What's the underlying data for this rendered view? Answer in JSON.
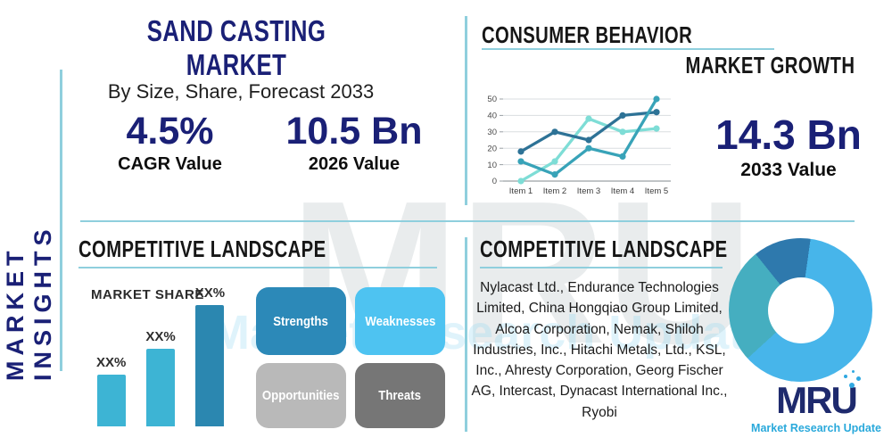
{
  "colors": {
    "navy": "#1a2076",
    "heading": "#161616",
    "teal_line": "#8fcfdd",
    "logo_navy": "#1e2a6d",
    "logo_blue": "#2aa9db"
  },
  "sidebar": {
    "label": "MARKET INSIGHTS"
  },
  "header": {
    "title": "SAND CASTING MARKET",
    "subtitle": "By Size, Share, Forecast 2033"
  },
  "stats": [
    {
      "value": "4.5%",
      "label": "CAGR Value"
    },
    {
      "value": "10.5 Bn",
      "label": "2026 Value"
    },
    {
      "value": "14.3 Bn",
      "label": "2033 Value"
    }
  ],
  "sections": {
    "consumer": {
      "title": "CONSUMER BEHAVIOR",
      "growth_title": "MARKET GROWTH"
    },
    "competitive_left": {
      "title": "COMPETITIVE LANDSCAPE",
      "market_share_label": "MARKET SHARE"
    },
    "competitive_right": {
      "title": "COMPETITIVE LANDSCAPE",
      "companies": "Nylacast Ltd., Endurance Technologies Limited, China Hongqiao Group Limited, Alcoa Corporation, Nemak, Shiloh Industries, Inc., Hitachi Metals, Ltd., KSL, Inc., Ahresty Corporation, Georg Fischer AG, Intercast, Dynacast International Inc., Ryobi"
    }
  },
  "swot": [
    {
      "label": "Strengths",
      "color": "#2c89b8"
    },
    {
      "label": "Weaknesses",
      "color": "#4ec3f1"
    },
    {
      "label": "Opportunities",
      "color": "#b9b9b9"
    },
    {
      "label": "Threats",
      "color": "#767676"
    }
  ],
  "chart_data": [
    {
      "type": "line",
      "title": "",
      "x": [
        "Item 1",
        "Item 2",
        "Item 3",
        "Item 4",
        "Item 5"
      ],
      "series": [
        {
          "name": "series-dark-blue",
          "color": "#2d7296",
          "values": [
            18,
            30,
            25,
            40,
            42
          ]
        },
        {
          "name": "series-teal",
          "color": "#38a3b8",
          "values": [
            12,
            4,
            20,
            15,
            50
          ]
        },
        {
          "name": "series-light-teal",
          "color": "#7eddd6",
          "values": [
            0,
            12,
            38,
            30,
            32
          ]
        }
      ],
      "ylim": [
        0,
        50
      ],
      "yticks": [
        0,
        10,
        20,
        30,
        40,
        50
      ],
      "grid": true,
      "legend": false
    },
    {
      "type": "bar",
      "title": "MARKET SHARE",
      "categories": [
        "",
        "",
        ""
      ],
      "values": [
        30,
        45,
        70
      ],
      "value_labels": [
        "XX%",
        "XX%",
        "XX%"
      ],
      "colors": [
        "#3db4d4",
        "#3db4d4",
        "#2b87b0"
      ],
      "ylim": [
        0,
        100
      ]
    },
    {
      "type": "donut",
      "slices": [
        {
          "name": "primary",
          "value": 61,
          "color": "#47b5ea"
        },
        {
          "name": "secondary",
          "value": 26,
          "color": "#45aec0"
        },
        {
          "name": "tertiary",
          "value": 13,
          "color": "#2e79ad"
        }
      ],
      "start_angle_deg": 8
    }
  ],
  "logo": {
    "text": "MRU",
    "tagline": "Market Research Update"
  },
  "watermark": {
    "text": "MRU"
  }
}
